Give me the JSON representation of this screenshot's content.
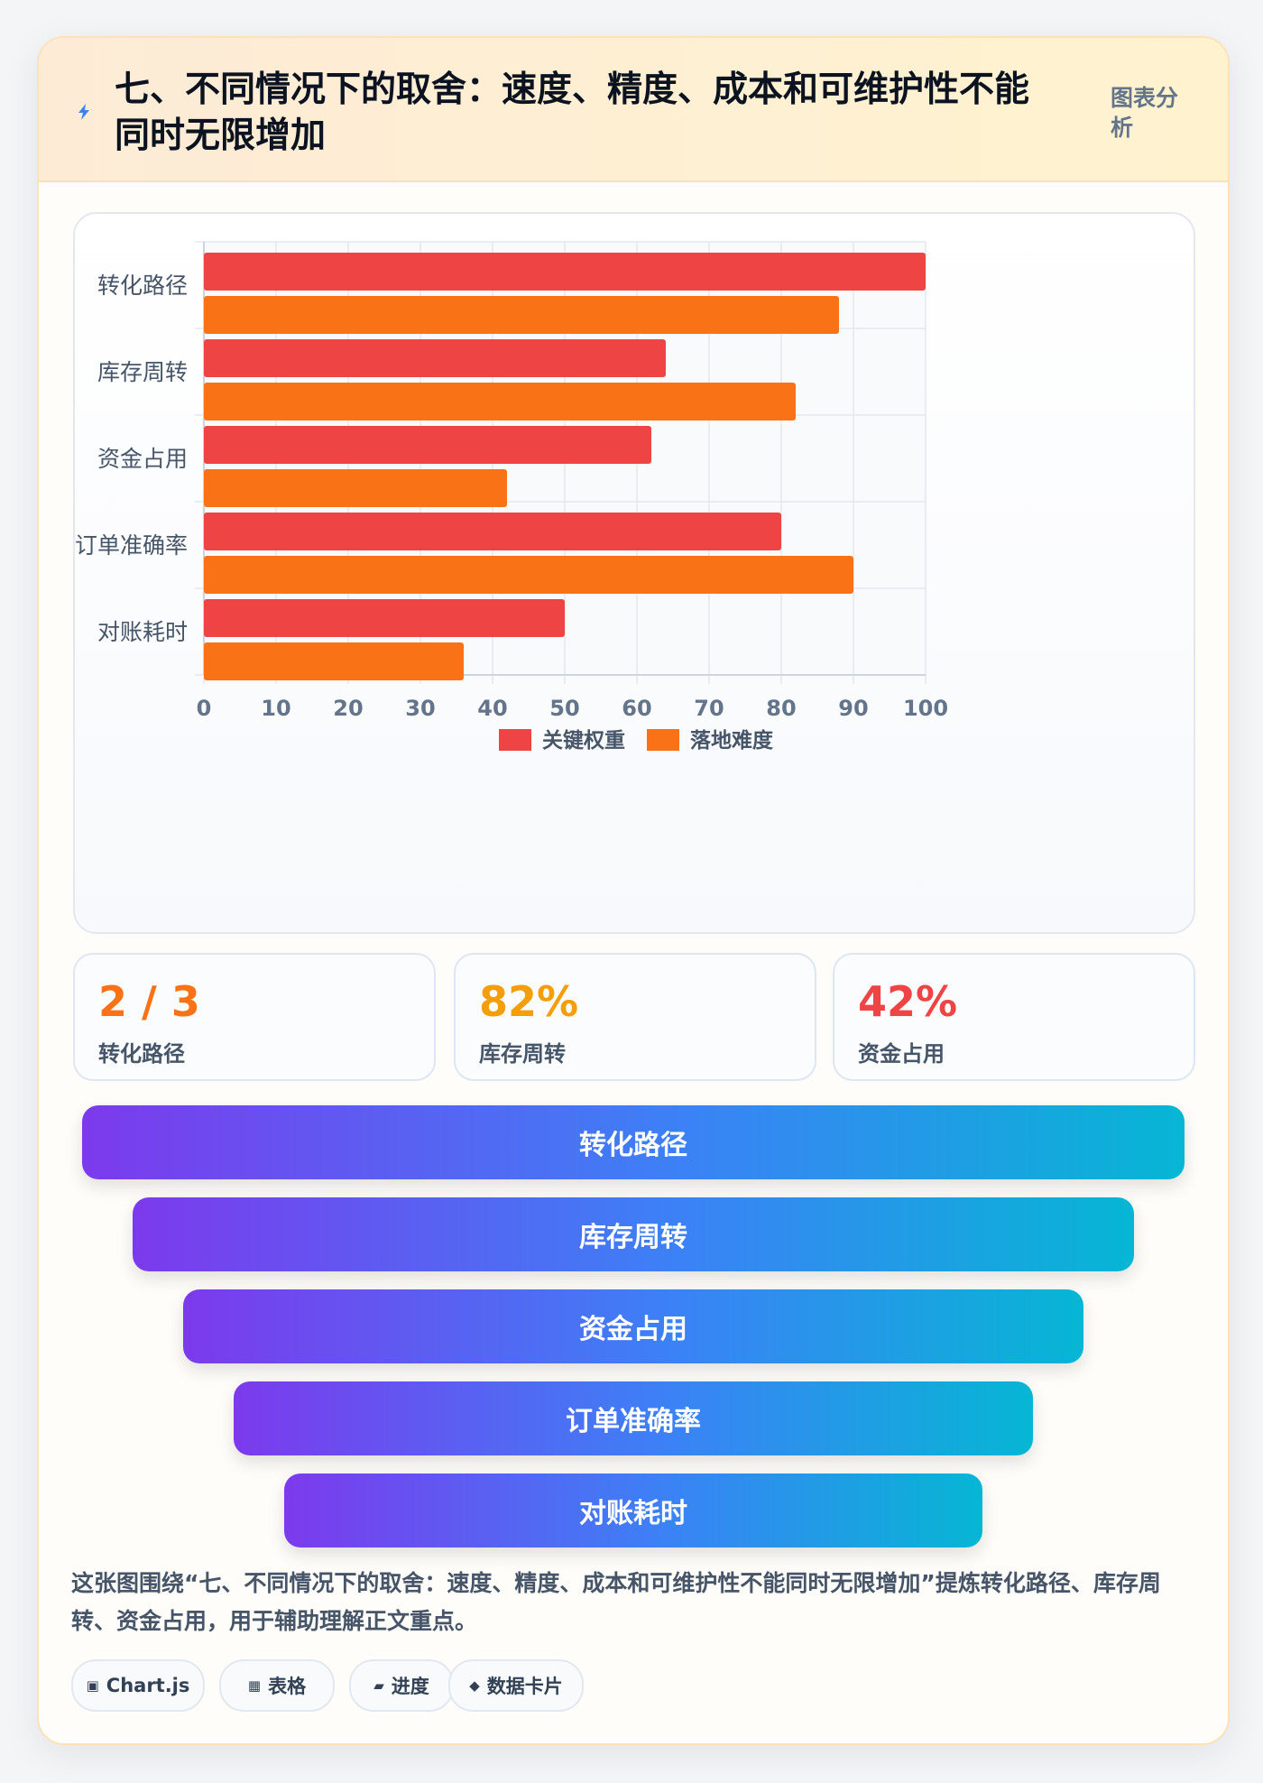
{
  "header": {
    "title": "七、不同情况下的取舍：速度、精度、成本和可维护性不能同时无限增加",
    "tag": "图表分析",
    "icon": "lightning-icon"
  },
  "chart_data": {
    "type": "bar",
    "orientation": "horizontal",
    "categories": [
      "转化路径",
      "库存周转",
      "资金占用",
      "订单准确率",
      "对账耗时"
    ],
    "series": [
      {
        "name": "关键权重",
        "color": "#ef4444",
        "values": [
          100,
          64,
          62,
          80,
          50
        ]
      },
      {
        "name": "落地难度",
        "color": "#f97316",
        "values": [
          88,
          82,
          42,
          90,
          36
        ]
      }
    ],
    "xlim": [
      0,
      100
    ],
    "xticks": [
      0,
      10,
      20,
      30,
      40,
      50,
      60,
      70,
      80,
      90,
      100
    ],
    "grid": true,
    "legend": "bottom"
  },
  "stats": [
    {
      "value": "2 / 3",
      "label": "转化路径",
      "color": "#f97316"
    },
    {
      "value": "82%",
      "label": "库存周转",
      "color": "#f59e0b"
    },
    {
      "value": "42%",
      "label": "资金占用",
      "color": "#ef4444"
    }
  ],
  "funnel": [
    "转化路径",
    "库存周转",
    "资金占用",
    "订单准确率",
    "对账耗时"
  ],
  "description": "这张图围绕“七、不同情况下的取舍：速度、精度、成本和可维护性不能同时无限增加”提炼转化路径、库存周转、资金占用，用于辅助理解正文重点。",
  "chips": [
    {
      "icon": "▣",
      "icon_name": "chart-icon",
      "label": "Chart.js"
    },
    {
      "icon": "▦",
      "icon_name": "table-icon",
      "label": "表格"
    },
    {
      "icon": "▰",
      "icon_name": "progress-icon",
      "label": "进度"
    },
    {
      "icon": "◆",
      "icon_name": "data-card-icon",
      "label": "数据卡片"
    }
  ]
}
